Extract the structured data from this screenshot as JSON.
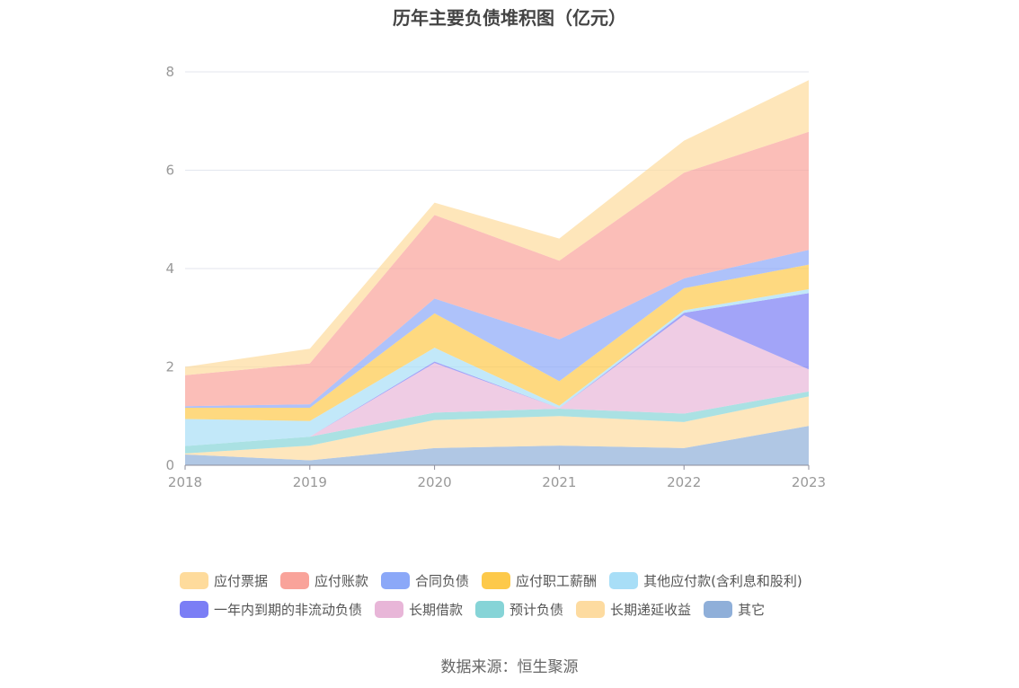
{
  "title": "历年主要负债堆积图（亿元）",
  "source": "数据来源：恒生聚源",
  "chart_data": {
    "type": "area",
    "stacked": true,
    "title": "历年主要负债堆积图（亿元）",
    "categories": [
      "2018",
      "2019",
      "2020",
      "2021",
      "2022",
      "2023"
    ],
    "ylim": [
      0,
      8
    ],
    "yticks": [
      "0",
      "2",
      "4",
      "6",
      "8"
    ],
    "grid": true,
    "legend_position": "bottom",
    "series": [
      {
        "name": "其它",
        "color": "#8fafd9",
        "values": [
          0.22,
          0.1,
          0.35,
          0.4,
          0.35,
          0.8
        ]
      },
      {
        "name": "长期递延收益",
        "color": "#fddba0",
        "values": [
          0.02,
          0.3,
          0.57,
          0.6,
          0.53,
          0.6
        ]
      },
      {
        "name": "预计负债",
        "color": "#86d4d7",
        "values": [
          0.15,
          0.18,
          0.15,
          0.15,
          0.17,
          0.1
        ]
      },
      {
        "name": "长期借款",
        "color": "#e8b6d8",
        "values": [
          0.0,
          0.0,
          1.01,
          0.01,
          2.0,
          0.45
        ]
      },
      {
        "name": "一年内到期的非流动负债",
        "color": "#7b7ef5",
        "values": [
          0.0,
          0.0,
          0.03,
          0.0,
          0.05,
          1.55
        ]
      },
      {
        "name": "其他应付款(含利息和股利)",
        "color": "#a8def7",
        "values": [
          0.55,
          0.32,
          0.28,
          0.05,
          0.05,
          0.08
        ]
      },
      {
        "name": "应付职工薪酬",
        "color": "#fdc94a",
        "values": [
          0.23,
          0.27,
          0.7,
          0.5,
          0.45,
          0.5
        ]
      },
      {
        "name": "合同负债",
        "color": "#8ba8f8",
        "values": [
          0.03,
          0.07,
          0.3,
          0.85,
          0.2,
          0.3
        ]
      },
      {
        "name": "应付账款",
        "color": "#f9a39a",
        "values": [
          0.63,
          0.83,
          1.7,
          1.6,
          2.15,
          2.4
        ]
      },
      {
        "name": "应付票据",
        "color": "#fedb9c",
        "values": [
          0.17,
          0.3,
          0.25,
          0.45,
          0.65,
          1.05
        ]
      }
    ]
  },
  "legend_rows": [
    [
      {
        "label": "应付票据",
        "color": "#fedb9c"
      },
      {
        "label": "应付账款",
        "color": "#f9a39a"
      },
      {
        "label": "合同负债",
        "color": "#8ba8f8"
      },
      {
        "label": "应付职工薪酬",
        "color": "#fdc94a"
      },
      {
        "label": "其他应付款(含利息和股利)",
        "color": "#a8def7"
      }
    ],
    [
      {
        "label": "一年内到期的非流动负债",
        "color": "#7b7ef5"
      },
      {
        "label": "长期借款",
        "color": "#e8b6d8"
      },
      {
        "label": "预计负债",
        "color": "#86d4d7"
      },
      {
        "label": "长期递延收益",
        "color": "#fddba0"
      },
      {
        "label": "其它",
        "color": "#8fafd9"
      }
    ]
  ]
}
